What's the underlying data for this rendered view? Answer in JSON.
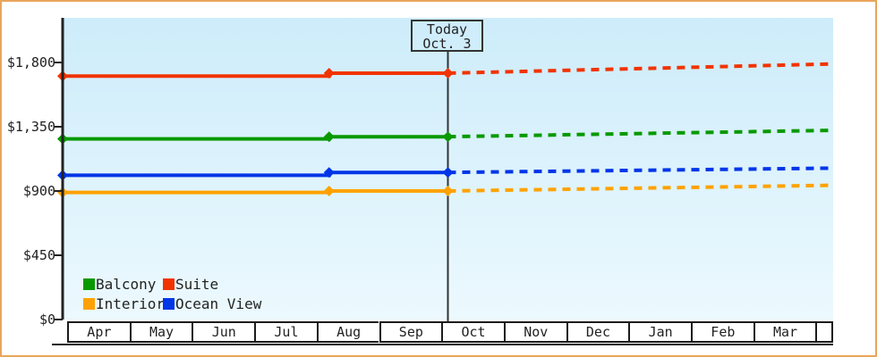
{
  "chart_data": {
    "type": "line",
    "x_categories": [
      "Apr",
      "May",
      "Jun",
      "Jul",
      "Aug",
      "Sep",
      "Oct",
      "Nov",
      "Dec",
      "Jan",
      "Feb",
      "Mar"
    ],
    "y_ticks": [
      {
        "label": "$1,800",
        "value": 1800
      },
      {
        "label": "$1,350",
        "value": 1350
      },
      {
        "label": "$900",
        "value": 900
      },
      {
        "label": "$450",
        "value": 450
      },
      {
        "label": "$0",
        "value": 0
      }
    ],
    "ylim": [
      0,
      2100
    ],
    "grid": false,
    "legend_position": "bottom-left",
    "today": {
      "line1": "Today",
      "line2": "Oct. 3",
      "month_position": 6.0
    },
    "series": [
      {
        "name": "Balcony",
        "color": "#089900",
        "solid_points": [
          [
            0,
            1265
          ],
          [
            4.15,
            1265
          ],
          [
            4.15,
            1280
          ],
          [
            6,
            1280
          ]
        ],
        "dashed_points": [
          [
            6,
            1280
          ],
          [
            12,
            1325
          ]
        ],
        "markers": [
          [
            0,
            1265
          ],
          [
            4.15,
            1280
          ],
          [
            6,
            1280
          ]
        ]
      },
      {
        "name": "Suite",
        "color": "#f13300",
        "solid_points": [
          [
            0,
            1705
          ],
          [
            4.15,
            1705
          ],
          [
            4.15,
            1725
          ],
          [
            6,
            1725
          ]
        ],
        "dashed_points": [
          [
            6,
            1725
          ],
          [
            12,
            1790
          ]
        ],
        "markers": [
          [
            0,
            1705
          ],
          [
            4.15,
            1725
          ],
          [
            6,
            1725
          ]
        ]
      },
      {
        "name": "Interior",
        "color": "#ffa200",
        "solid_points": [
          [
            0,
            890
          ],
          [
            4.15,
            890
          ],
          [
            4.15,
            900
          ],
          [
            6,
            900
          ]
        ],
        "dashed_points": [
          [
            6,
            900
          ],
          [
            12,
            940
          ]
        ],
        "markers": [
          [
            0,
            890
          ],
          [
            4.15,
            900
          ],
          [
            6,
            900
          ]
        ]
      },
      {
        "name": "Ocean View",
        "color": "#0035e8",
        "solid_points": [
          [
            0,
            1010
          ],
          [
            4.15,
            1010
          ],
          [
            4.15,
            1030
          ],
          [
            6,
            1030
          ]
        ],
        "dashed_points": [
          [
            6,
            1030
          ],
          [
            12,
            1060
          ]
        ],
        "markers": [
          [
            0,
            1010
          ],
          [
            4.15,
            1030
          ],
          [
            6,
            1030
          ]
        ]
      }
    ],
    "legend": [
      {
        "label": "Balcony",
        "color": "#089900"
      },
      {
        "label": "Suite",
        "color": "#f13300"
      },
      {
        "label": "Interior",
        "color": "#ffa200"
      },
      {
        "label": "Ocean View",
        "color": "#0035e8"
      }
    ]
  },
  "colors": {
    "frame_border": "#e9a65c",
    "axis": "#222222",
    "plot_bg_top": "#cdecfa",
    "plot_bg_bottom": "#ecf9fe",
    "text": "#222222"
  }
}
